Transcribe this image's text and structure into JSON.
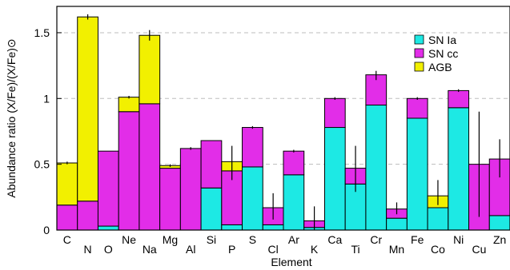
{
  "chart_data": {
    "type": "bar",
    "stacked": true,
    "xlabel": "Element",
    "ylabel": "Abundance ratio (X/Fe)/(X/Fe)⊙",
    "ylim": [
      0,
      1.7
    ],
    "yticks": [
      "0",
      "0.5",
      "1",
      "1.5"
    ],
    "ytick_values": [
      0,
      0.5,
      1,
      1.5
    ],
    "grid": "horizontal dashed",
    "legend_position": "top-right",
    "categories": [
      "C",
      "N",
      "O",
      "Ne",
      "Na",
      "Mg",
      "Al",
      "Si",
      "P",
      "S",
      "Cl",
      "Ar",
      "K",
      "Ca",
      "Ti",
      "Cr",
      "Mn",
      "Fe",
      "Co",
      "Ni",
      "Cu",
      "Zn"
    ],
    "label_row": [
      "top",
      "bottom",
      "bottom",
      "top",
      "bottom",
      "top",
      "bottom",
      "top",
      "bottom",
      "top",
      "bottom",
      "top",
      "bottom",
      "top",
      "bottom",
      "top",
      "bottom",
      "top",
      "bottom",
      "top",
      "bottom",
      "top"
    ],
    "series": [
      {
        "name": "SN Ia",
        "color": "#1de9e4",
        "values": [
          0,
          0,
          0.03,
          0,
          0,
          0,
          0,
          0.32,
          0.04,
          0.48,
          0.04,
          0.42,
          0.02,
          0.78,
          0.35,
          0.95,
          0.09,
          0.85,
          0.17,
          0.93,
          0,
          0.11
        ]
      },
      {
        "name": "SN cc",
        "color": "#e22de8",
        "values": [
          0.19,
          0.22,
          0.57,
          0.9,
          0.96,
          0.47,
          0.62,
          0.36,
          0.41,
          0.3,
          0.13,
          0.18,
          0.05,
          0.22,
          0.12,
          0.23,
          0.07,
          0.15,
          0,
          0.13,
          0.5,
          0.43
        ]
      },
      {
        "name": "AGB",
        "color": "#f2f000",
        "values": [
          0.32,
          1.4,
          0,
          0.11,
          0.52,
          0.02,
          0,
          0,
          0.07,
          0,
          0,
          0,
          0,
          0,
          0,
          0,
          0,
          0,
          0.09,
          0,
          0,
          0
        ]
      }
    ],
    "error_bars": [
      {
        "category": "C",
        "low": 0.5,
        "high": 0.52
      },
      {
        "category": "N",
        "low": 1.6,
        "high": 1.64
      },
      {
        "category": "Ne",
        "low": 1.0,
        "high": 1.02
      },
      {
        "category": "Na",
        "low": 1.44,
        "high": 1.52
      },
      {
        "category": "Mg",
        "low": 0.48,
        "high": 0.5
      },
      {
        "category": "Al",
        "low": 0.61,
        "high": 0.63
      },
      {
        "category": "P",
        "low": 0.38,
        "high": 0.64
      },
      {
        "category": "S",
        "low": 0.77,
        "high": 0.79
      },
      {
        "category": "Cl",
        "low": 0.08,
        "high": 0.28
      },
      {
        "category": "Ar",
        "low": 0.59,
        "high": 0.61
      },
      {
        "category": "K",
        "low": 0.0,
        "high": 0.18
      },
      {
        "category": "Ca",
        "low": 0.99,
        "high": 1.01
      },
      {
        "category": "Ti",
        "low": 0.29,
        "high": 0.64
      },
      {
        "category": "Cr",
        "low": 1.14,
        "high": 1.21
      },
      {
        "category": "Mn",
        "low": 0.12,
        "high": 0.21
      },
      {
        "category": "Fe",
        "low": 0.99,
        "high": 1.01
      },
      {
        "category": "Co",
        "low": 0.19,
        "high": 0.38
      },
      {
        "category": "Ni",
        "low": 1.05,
        "high": 1.07
      },
      {
        "category": "Cu",
        "low": 0.1,
        "high": 0.9
      },
      {
        "category": "Zn",
        "low": 0.4,
        "high": 0.69
      }
    ]
  }
}
